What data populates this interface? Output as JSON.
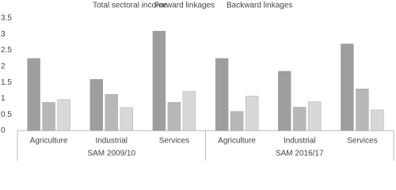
{
  "chart_data": {
    "type": "bar",
    "categories": [
      "Agriculture",
      "Industrial",
      "Services",
      "Agriculture",
      "Industrial",
      "Services"
    ],
    "groups": [
      "SAM 2009/10",
      "SAM 2016/17"
    ],
    "series": [
      {
        "name": "Total sectoral income",
        "color": "#9e9e9e",
        "values": [
          2.25,
          1.6,
          3.1,
          2.25,
          1.85,
          2.7
        ]
      },
      {
        "name": "Forward linkages",
        "color": "#b8b8b8",
        "values": [
          0.88,
          1.13,
          0.88,
          0.6,
          0.73,
          1.3
        ]
      },
      {
        "name": "Backward linkages",
        "color": "#d8d8d8",
        "values": [
          0.97,
          0.72,
          1.22,
          1.08,
          0.9,
          0.65
        ]
      }
    ],
    "ylim": [
      0,
      3.5
    ],
    "yticks": [
      0,
      0.5,
      1,
      1.5,
      2,
      2.5,
      3,
      3.5
    ],
    "grid": false,
    "legend": "top"
  }
}
